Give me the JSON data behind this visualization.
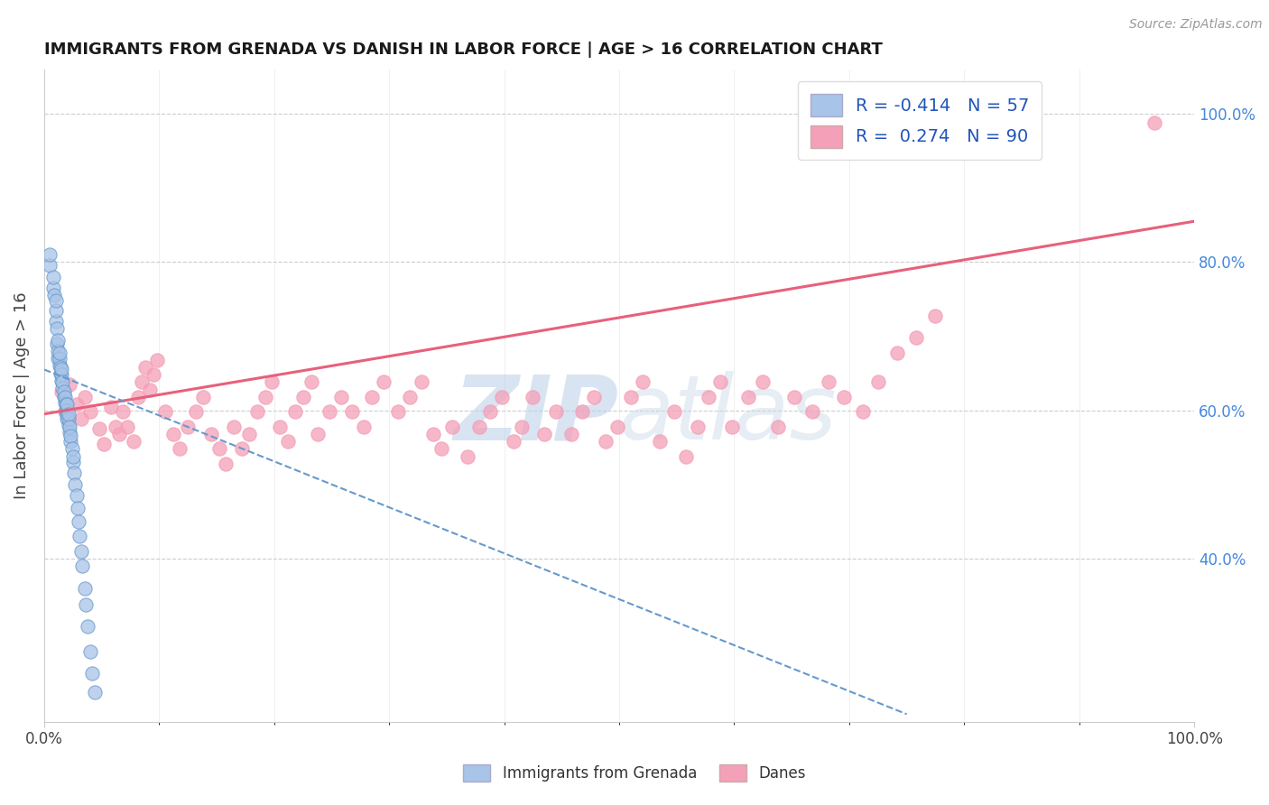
{
  "title": "IMMIGRANTS FROM GRENADA VS DANISH IN LABOR FORCE | AGE > 16 CORRELATION CHART",
  "source_text": "Source: ZipAtlas.com",
  "ylabel": "In Labor Force | Age > 16",
  "x_tick_labels": [
    "0.0%",
    "100.0%"
  ],
  "y_tick_labels_right": [
    "40.0%",
    "60.0%",
    "80.0%",
    "100.0%"
  ],
  "legend_r_blue": "-0.414",
  "legend_n_blue": "57",
  "legend_r_pink": "0.274",
  "legend_n_pink": "90",
  "legend_label_blue": "Immigrants from Grenada",
  "legend_label_pink": "Danes",
  "blue_color": "#a8c4e8",
  "pink_color": "#f4a0b8",
  "blue_line_color": "#6699cc",
  "pink_line_color": "#e8607a",
  "watermark_zip": "ZIP",
  "watermark_atlas": "atlas",
  "background_color": "#ffffff",
  "grid_color": "#c8c8cc",
  "ylim_min": 0.18,
  "ylim_max": 1.06,
  "xlim_min": 0.0,
  "xlim_max": 1.0,
  "blue_scatter_x": [
    0.005,
    0.005,
    0.008,
    0.008,
    0.009,
    0.01,
    0.01,
    0.01,
    0.011,
    0.011,
    0.012,
    0.012,
    0.012,
    0.013,
    0.013,
    0.013,
    0.014,
    0.014,
    0.015,
    0.015,
    0.015,
    0.016,
    0.016,
    0.017,
    0.017,
    0.018,
    0.018,
    0.019,
    0.019,
    0.02,
    0.02,
    0.02,
    0.02,
    0.021,
    0.021,
    0.021,
    0.022,
    0.022,
    0.023,
    0.023,
    0.024,
    0.025,
    0.025,
    0.026,
    0.027,
    0.028,
    0.029,
    0.03,
    0.031,
    0.032,
    0.033,
    0.035,
    0.036,
    0.038,
    0.04,
    0.042,
    0.044
  ],
  "blue_scatter_y": [
    0.795,
    0.81,
    0.765,
    0.78,
    0.755,
    0.72,
    0.735,
    0.748,
    0.69,
    0.71,
    0.67,
    0.68,
    0.695,
    0.66,
    0.67,
    0.678,
    0.65,
    0.658,
    0.64,
    0.648,
    0.655,
    0.63,
    0.638,
    0.618,
    0.625,
    0.61,
    0.618,
    0.6,
    0.608,
    0.588,
    0.595,
    0.6,
    0.608,
    0.58,
    0.588,
    0.595,
    0.57,
    0.578,
    0.558,
    0.565,
    0.548,
    0.53,
    0.538,
    0.515,
    0.5,
    0.485,
    0.468,
    0.45,
    0.43,
    0.41,
    0.39,
    0.36,
    0.338,
    0.308,
    0.275,
    0.245,
    0.22
  ],
  "pink_scatter_x": [
    0.015,
    0.018,
    0.022,
    0.028,
    0.032,
    0.035,
    0.04,
    0.048,
    0.052,
    0.058,
    0.062,
    0.065,
    0.068,
    0.072,
    0.078,
    0.082,
    0.085,
    0.088,
    0.092,
    0.095,
    0.098,
    0.105,
    0.112,
    0.118,
    0.125,
    0.132,
    0.138,
    0.145,
    0.152,
    0.158,
    0.165,
    0.172,
    0.178,
    0.185,
    0.192,
    0.198,
    0.205,
    0.212,
    0.218,
    0.225,
    0.232,
    0.238,
    0.248,
    0.258,
    0.268,
    0.278,
    0.285,
    0.295,
    0.308,
    0.318,
    0.328,
    0.338,
    0.345,
    0.355,
    0.368,
    0.378,
    0.388,
    0.398,
    0.408,
    0.415,
    0.425,
    0.435,
    0.445,
    0.458,
    0.468,
    0.478,
    0.488,
    0.498,
    0.51,
    0.52,
    0.535,
    0.548,
    0.558,
    0.568,
    0.578,
    0.588,
    0.598,
    0.612,
    0.625,
    0.638,
    0.652,
    0.668,
    0.682,
    0.695,
    0.712,
    0.725,
    0.742,
    0.758,
    0.775,
    0.965
  ],
  "pink_scatter_y": [
    0.625,
    0.598,
    0.635,
    0.608,
    0.588,
    0.618,
    0.598,
    0.575,
    0.555,
    0.605,
    0.578,
    0.568,
    0.598,
    0.578,
    0.558,
    0.618,
    0.638,
    0.658,
    0.628,
    0.648,
    0.668,
    0.598,
    0.568,
    0.548,
    0.578,
    0.598,
    0.618,
    0.568,
    0.548,
    0.528,
    0.578,
    0.548,
    0.568,
    0.598,
    0.618,
    0.638,
    0.578,
    0.558,
    0.598,
    0.618,
    0.638,
    0.568,
    0.598,
    0.618,
    0.598,
    0.578,
    0.618,
    0.638,
    0.598,
    0.618,
    0.638,
    0.568,
    0.548,
    0.578,
    0.538,
    0.578,
    0.598,
    0.618,
    0.558,
    0.578,
    0.618,
    0.568,
    0.598,
    0.568,
    0.598,
    0.618,
    0.558,
    0.578,
    0.618,
    0.638,
    0.558,
    0.598,
    0.538,
    0.578,
    0.618,
    0.638,
    0.578,
    0.618,
    0.638,
    0.578,
    0.618,
    0.598,
    0.638,
    0.618,
    0.598,
    0.638,
    0.678,
    0.698,
    0.728,
    0.988
  ],
  "pink_line_x0": 0.0,
  "pink_line_x1": 1.0,
  "pink_line_y0": 0.595,
  "pink_line_y1": 0.855,
  "blue_line_x0": 0.0,
  "blue_line_x1": 0.75,
  "blue_line_y0": 0.655,
  "blue_line_y1": 0.19
}
